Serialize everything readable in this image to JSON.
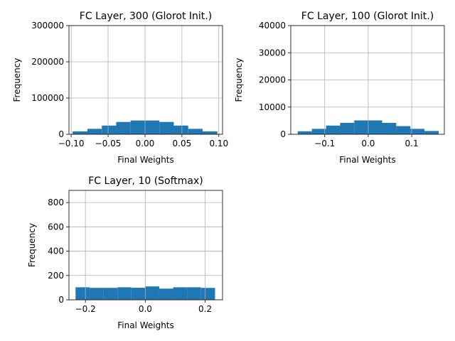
{
  "chart_data": [
    {
      "type": "bar",
      "title": "FC Layer, 300 (Glorot Init.)",
      "xlabel": "Final Weights",
      "ylabel": "Frequency",
      "xlim": [
        -0.103,
        0.105
      ],
      "ylim": [
        0,
        300000
      ],
      "xticks": [
        -0.1,
        -0.05,
        0.0,
        0.05,
        0.1
      ],
      "xtick_labels": [
        "−0.10",
        "−0.05",
        "0.00",
        "0.05",
        "0.10"
      ],
      "yticks": [
        0,
        100000,
        200000,
        300000
      ],
      "ytick_labels": [
        "0",
        "100000",
        "200000",
        "300000"
      ],
      "grid": true,
      "bin_edges": [
        -0.098,
        -0.078,
        -0.0585,
        -0.039,
        -0.0195,
        0.0,
        0.0195,
        0.039,
        0.0585,
        0.078,
        0.098
      ],
      "values": [
        8000,
        15000,
        24000,
        34000,
        38000,
        38000,
        34000,
        24000,
        15000,
        8000
      ]
    },
    {
      "type": "bar",
      "title": "FC Layer, 100 (Glorot Init.)",
      "xlabel": "Final Weights",
      "ylabel": "Frequency",
      "xlim": [
        -0.178,
        0.175
      ],
      "ylim": [
        0,
        40000
      ],
      "xticks": [
        -0.1,
        0.0,
        0.1
      ],
      "xtick_labels": [
        "−0.1",
        "0.0",
        "0.1"
      ],
      "yticks": [
        0,
        10000,
        20000,
        30000,
        40000
      ],
      "ytick_labels": [
        "0",
        "10000",
        "20000",
        "30000",
        "40000"
      ],
      "grid": true,
      "bin_edges": [
        -0.162,
        -0.1295,
        -0.097,
        -0.0645,
        -0.032,
        0.0,
        0.032,
        0.0645,
        0.097,
        0.1295,
        0.162
      ],
      "values": [
        1100,
        2000,
        3200,
        4200,
        5100,
        5100,
        4200,
        3000,
        2000,
        1200
      ]
    },
    {
      "type": "bar",
      "title": "FC Layer, 10 (Softmax)",
      "xlabel": "Final Weights",
      "ylabel": "Frequency",
      "xlim": [
        -0.255,
        0.258
      ],
      "ylim": [
        0,
        900
      ],
      "xticks": [
        -0.2,
        0.0,
        0.2
      ],
      "xtick_labels": [
        "−0.2",
        "0.0",
        "0.2"
      ],
      "yticks": [
        0,
        200,
        400,
        600,
        800
      ],
      "ytick_labels": [
        "0",
        "200",
        "400",
        "600",
        "800"
      ],
      "grid": true,
      "bin_edges": [
        -0.233,
        -0.186,
        -0.1395,
        -0.093,
        -0.0465,
        0.0,
        0.0465,
        0.093,
        0.1395,
        0.186,
        0.233
      ],
      "values": [
        103,
        98,
        98,
        103,
        99,
        110,
        92,
        103,
        103,
        98
      ]
    }
  ]
}
